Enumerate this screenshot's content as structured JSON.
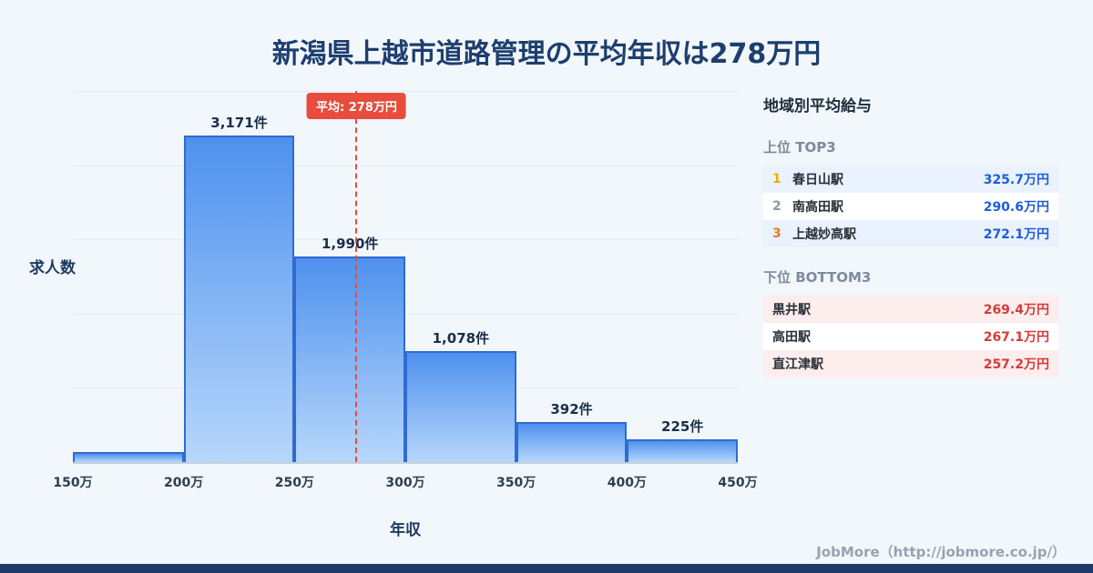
{
  "page": {
    "title": "新潟県上越市道路管理の平均年収は278万円",
    "footer_credit": "JobMore（http://jobmore.co.jp/）"
  },
  "chart_data": {
    "type": "bar",
    "title": "新潟県上越市道路管理の平均年収は278万円",
    "xlabel": "年収",
    "ylabel": "求人数",
    "x_ticks": [
      "150万",
      "200万",
      "250万",
      "300万",
      "350万",
      "400万",
      "450万"
    ],
    "bin_edges": [
      150,
      200,
      250,
      300,
      350,
      400,
      450
    ],
    "values": [
      100,
      3171,
      1990,
      1078,
      392,
      225
    ],
    "bar_labels": [
      "",
      "3,171件",
      "1,990件",
      "1,078件",
      "392件",
      "225件"
    ],
    "average_line": {
      "label": "平均: 278万円",
      "value": 278
    },
    "xlim": [
      150,
      450
    ],
    "ylim": [
      0,
      3600
    ],
    "grid": true,
    "legend": false
  },
  "sidebar": {
    "title": "地域別平均給与",
    "top3": {
      "title": "上位 TOP3",
      "rows": [
        {
          "rank": "1",
          "name": "春日山駅",
          "value": "325.7万円"
        },
        {
          "rank": "2",
          "name": "南高田駅",
          "value": "290.6万円"
        },
        {
          "rank": "3",
          "name": "上越妙高駅",
          "value": "272.1万円"
        }
      ]
    },
    "bottom3": {
      "title": "下位 BOTTOM3",
      "rows": [
        {
          "name": "黒井駅",
          "value": "269.4万円"
        },
        {
          "name": "高田駅",
          "value": "267.1万円"
        },
        {
          "name": "直江津駅",
          "value": "257.2万円"
        }
      ]
    }
  },
  "colors": {
    "background": "#f2f7fb",
    "title": "#1d3e6e",
    "bar_fill_top": "#4e91ee",
    "bar_fill_bottom": "#b7d7fb",
    "bar_border": "#2f6bd0",
    "average_line": "#e74c3c",
    "top3_value": "#1f5ed6",
    "bottom3_value": "#d63b3b",
    "rank1": "#f0ad00",
    "rank2": "#8d99a6",
    "rank3": "#e07b2f",
    "top3_row_highlight": "#e9f2fd",
    "bottom3_row_highlight": "#fdeded",
    "bottom_bar": "#1d3a66"
  }
}
